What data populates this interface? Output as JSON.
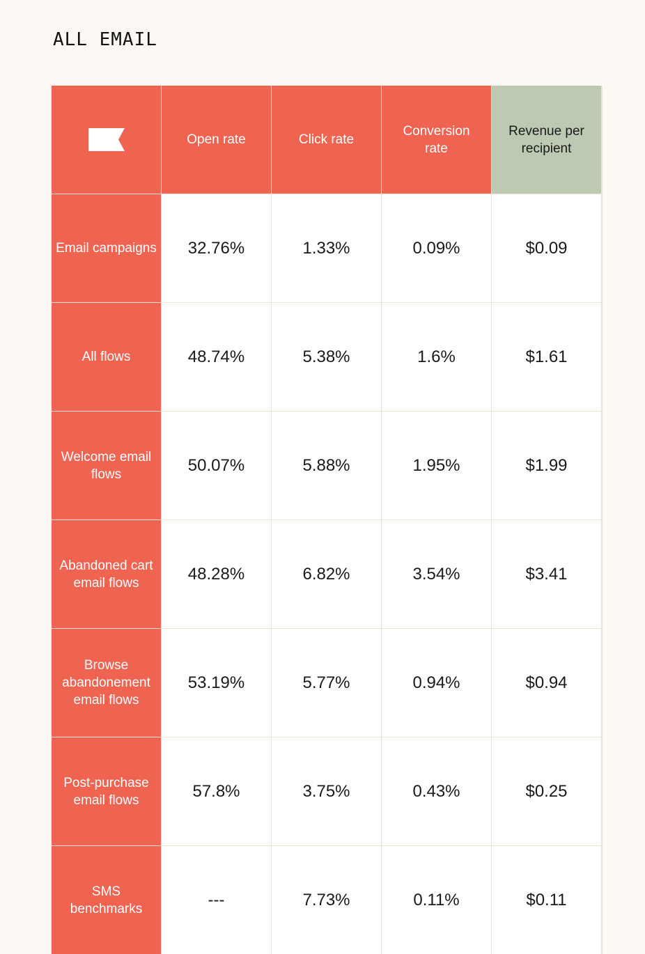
{
  "heading": "ALL EMAIL",
  "columns": [
    "Open rate",
    "Click rate",
    "Conversion rate",
    "Revenue per recipient"
  ],
  "brand_icon": "flag-logo-icon",
  "colors": {
    "header_red": "#ef6351",
    "header_green": "#bccab3",
    "background": "#fdf8f3"
  },
  "rows": [
    {
      "label": "Email campaigns",
      "values": [
        "32.76%",
        "1.33%",
        "0.09%",
        "$0.09"
      ]
    },
    {
      "label": "All flows",
      "values": [
        "48.74%",
        "5.38%",
        "1.6%",
        "$1.61"
      ]
    },
    {
      "label": "Welcome email flows",
      "values": [
        "50.07%",
        "5.88%",
        "1.95%",
        "$1.99"
      ]
    },
    {
      "label": "Abandoned cart email flows",
      "values": [
        "48.28%",
        "6.82%",
        "3.54%",
        "$3.41"
      ]
    },
    {
      "label": "Browse abandonement email flows",
      "values": [
        "53.19%",
        "5.77%",
        "0.94%",
        "$0.94"
      ]
    },
    {
      "label": "Post-purchase email flows",
      "values": [
        "57.8%",
        "3.75%",
        "0.43%",
        "$0.25"
      ]
    },
    {
      "label": "SMS benchmarks",
      "values": [
        "---",
        "7.73%",
        "0.11%",
        "$0.11"
      ]
    }
  ]
}
